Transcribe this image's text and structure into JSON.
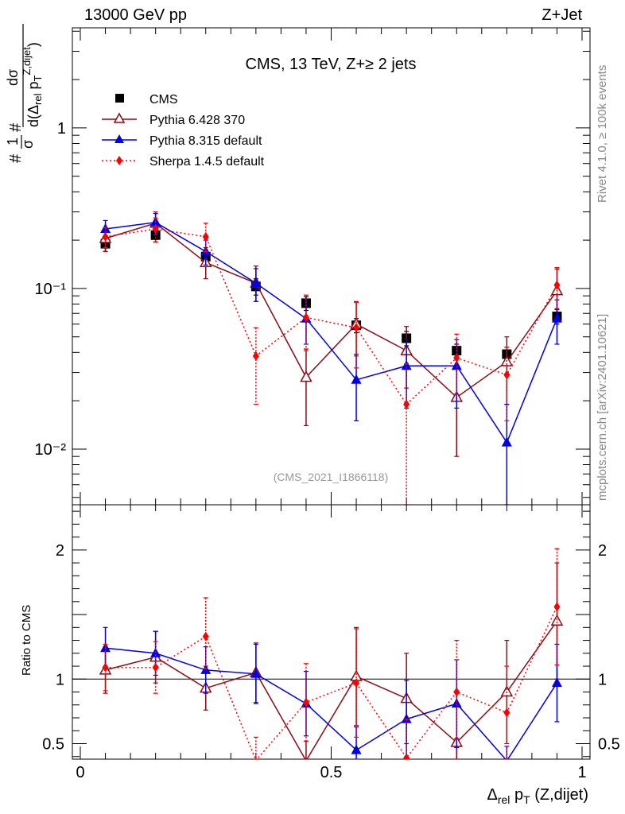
{
  "header": {
    "left": "13000 GeV pp",
    "right": "Z+Jet"
  },
  "side_labels": {
    "rivet": "Rivet 4.1.0, ≥ 100k events",
    "mcplots": "mcplots.cern.ch [arXiv:2401.10621]"
  },
  "colors": {
    "cms": "#000000",
    "pythia6": "#8b0a14",
    "pythia8": "#0000e6",
    "sherpa": "#ff0000",
    "analysis_tag": "#999999"
  },
  "chart_data": [
    {
      "type": "line",
      "title": "CMS, 13 TeV, Z+≥ 2 jets",
      "analysis_tag": "(CMS_2021_I1866118)",
      "ylabel": "1/σ dσ/d(Δrel pT Z,dijet)",
      "yscale": "log",
      "xlim": [
        0,
        1
      ],
      "ylim": [
        0.0045,
        4.2
      ],
      "y_ticks": [
        {
          "value": 1,
          "label": "1"
        },
        {
          "value": 0.1,
          "label": "10⁻¹"
        },
        {
          "value": 0.01,
          "label": "10⁻²"
        }
      ],
      "legend": [
        "CMS",
        "Pythia 6.428 370",
        "Pythia 8.315 default",
        "Sherpa 1.4.5 default"
      ],
      "x": [
        0.05,
        0.15,
        0.25,
        0.35,
        0.45,
        0.55,
        0.65,
        0.75,
        0.85,
        0.95
      ],
      "series": [
        {
          "name": "CMS",
          "style": "square",
          "values": [
            0.19,
            0.215,
            0.158,
            0.103,
            0.081,
            0.059,
            0.049,
            0.041,
            0.039,
            0.067
          ],
          "err_low": [
            0.02,
            0.02,
            0.015,
            0.012,
            0.008,
            0.006,
            0.005,
            0.004,
            0.004,
            0.007
          ],
          "err_high": [
            0.02,
            0.02,
            0.015,
            0.012,
            0.008,
            0.006,
            0.005,
            0.004,
            0.004,
            0.007
          ]
        },
        {
          "name": "Pythia 6.428 370",
          "style": "open-triangle",
          "values": [
            0.205,
            0.255,
            0.145,
            0.108,
            0.028,
            0.06,
            0.041,
            0.021,
            0.035,
            0.097
          ],
          "err_low": [
            0.035,
            0.04,
            0.03,
            0.025,
            0.014,
            0.022,
            0.017,
            0.012,
            0.016,
            0.03
          ],
          "err_high": [
            0.035,
            0.045,
            0.035,
            0.03,
            0.014,
            0.023,
            0.017,
            0.012,
            0.015,
            0.035
          ]
        },
        {
          "name": "Pythia 8.315 default",
          "style": "triangle",
          "values": [
            0.235,
            0.258,
            0.17,
            0.108,
            0.065,
            0.027,
            0.033,
            0.033,
            0.011,
            0.065
          ],
          "err_low": [
            0.03,
            0.035,
            0.03,
            0.025,
            0.02,
            0.012,
            0.015,
            0.015,
            0.0075,
            0.02
          ],
          "err_high": [
            0.03,
            0.035,
            0.03,
            0.025,
            0.02,
            0.012,
            0.015,
            0.015,
            0.008,
            0.02
          ]
        },
        {
          "name": "Sherpa 1.4.5 default",
          "style": "diamond",
          "values": [
            0.21,
            0.235,
            0.21,
            0.038,
            0.066,
            0.057,
            0.019,
            0.037,
            0.029,
            0.105
          ],
          "err_low": [
            0.03,
            0.04,
            0.04,
            0.019,
            0.025,
            0.025,
            0.0145,
            0.015,
            0.014,
            0.03
          ],
          "err_high": [
            0.03,
            0.04,
            0.045,
            0.019,
            0.025,
            0.025,
            0.015,
            0.015,
            0.014,
            0.03
          ]
        }
      ]
    },
    {
      "type": "line",
      "ylabel": "Ratio to CMS",
      "xlabel": "Δrel pT (Z,dijet)",
      "xlim": [
        0,
        1
      ],
      "ylim": [
        0.38,
        2.35
      ],
      "x_ticks": [
        {
          "value": 0,
          "label": "0"
        },
        {
          "value": 0.5,
          "label": "0.5"
        },
        {
          "value": 1,
          "label": "1"
        }
      ],
      "y_ticks": [
        {
          "value": 0.5,
          "label": "0.5"
        },
        {
          "value": 1,
          "label": "1"
        },
        {
          "value": 2,
          "label": "2"
        }
      ],
      "reference": 1,
      "x": [
        0.05,
        0.15,
        0.25,
        0.35,
        0.45,
        0.55,
        0.65,
        0.75,
        0.85,
        0.95
      ],
      "series": [
        {
          "name": "Pythia 6.428 370",
          "style": "open-triangle",
          "values": [
            1.07,
            1.17,
            0.93,
            1.05,
            0.35,
            1.02,
            0.85,
            0.51,
            0.9,
            1.45
          ],
          "err_low": [
            0.18,
            0.2,
            0.17,
            0.23,
            0.17,
            0.38,
            0.35,
            0.3,
            0.4,
            0.45
          ],
          "err_high": [
            0.18,
            0.2,
            0.17,
            0.23,
            0.17,
            0.38,
            0.35,
            0.3,
            0.4,
            0.45
          ]
        },
        {
          "name": "Pythia 8.315 default",
          "style": "triangle",
          "values": [
            1.24,
            1.2,
            1.07,
            1.04,
            0.81,
            0.45,
            0.69,
            0.81,
            0.28,
            0.97
          ],
          "err_low": [
            0.16,
            0.17,
            0.18,
            0.23,
            0.25,
            0.18,
            0.3,
            0.34,
            0.2,
            0.3
          ],
          "err_high": [
            0.16,
            0.17,
            0.18,
            0.23,
            0.25,
            0.18,
            0.3,
            0.34,
            0.2,
            0.3
          ]
        },
        {
          "name": "Sherpa 1.4.5 default",
          "style": "diamond",
          "values": [
            1.09,
            1.09,
            1.33,
            0.37,
            0.82,
            0.97,
            0.39,
            0.9,
            0.74,
            1.56
          ],
          "err_low": [
            0.18,
            0.2,
            0.25,
            0.18,
            0.3,
            0.42,
            0.3,
            0.36,
            0.36,
            0.45
          ],
          "err_high": [
            0.18,
            0.2,
            0.3,
            0.18,
            0.3,
            0.42,
            0.3,
            0.4,
            0.36,
            0.45
          ]
        }
      ]
    }
  ]
}
